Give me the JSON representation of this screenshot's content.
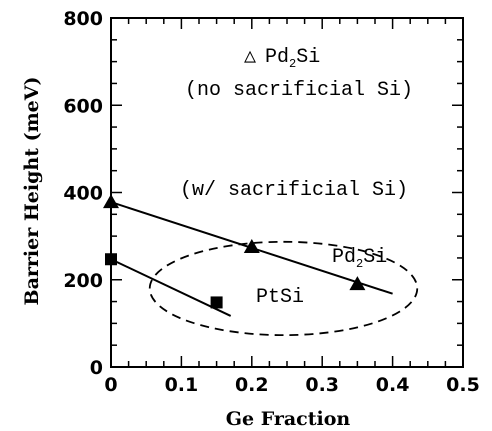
{
  "chart_data": {
    "type": "scatter",
    "xlabel": "Ge Fraction",
    "ylabel": "Barrier Height (meV)",
    "xlim": [
      0,
      0.5
    ],
    "ylim": [
      0,
      800
    ],
    "x_ticks": [
      "0",
      "0.1",
      "0.2",
      "0.3",
      "0.4",
      "0.5"
    ],
    "y_ticks": [
      "0",
      "200",
      "400",
      "600",
      "800"
    ],
    "series": [
      {
        "name": "Pd2Si",
        "marker": "triangle",
        "points": [
          {
            "x": 0,
            "y": 378
          },
          {
            "x": 0.2,
            "y": 275
          },
          {
            "x": 0.35,
            "y": 190
          }
        ],
        "fit_line": [
          {
            "x": 0,
            "y": 378
          },
          {
            "x": 0.4,
            "y": 168
          }
        ]
      },
      {
        "name": "PtSi",
        "marker": "square",
        "points": [
          {
            "x": 0,
            "y": 247
          },
          {
            "x": 0.15,
            "y": 148
          }
        ],
        "fit_line": [
          {
            "x": 0,
            "y": 247
          },
          {
            "x": 0.17,
            "y": 117
          }
        ]
      }
    ],
    "annotations": {
      "legend_triangle": "△",
      "legend_main": "Pd",
      "legend_sub": "2",
      "legend_rest": "Si",
      "no_sacrificial": "(no sacrificial Si)",
      "with_sacrificial": "(w/ sacrificial Si)",
      "pd2si_main": "Pd",
      "pd2si_sub": "2",
      "pd2si_rest": "Si",
      "ptsi_label": "PtSi"
    },
    "ellipse": {
      "cx": 0.245,
      "cy": 180,
      "rx": 0.19,
      "ry": 107
    }
  }
}
